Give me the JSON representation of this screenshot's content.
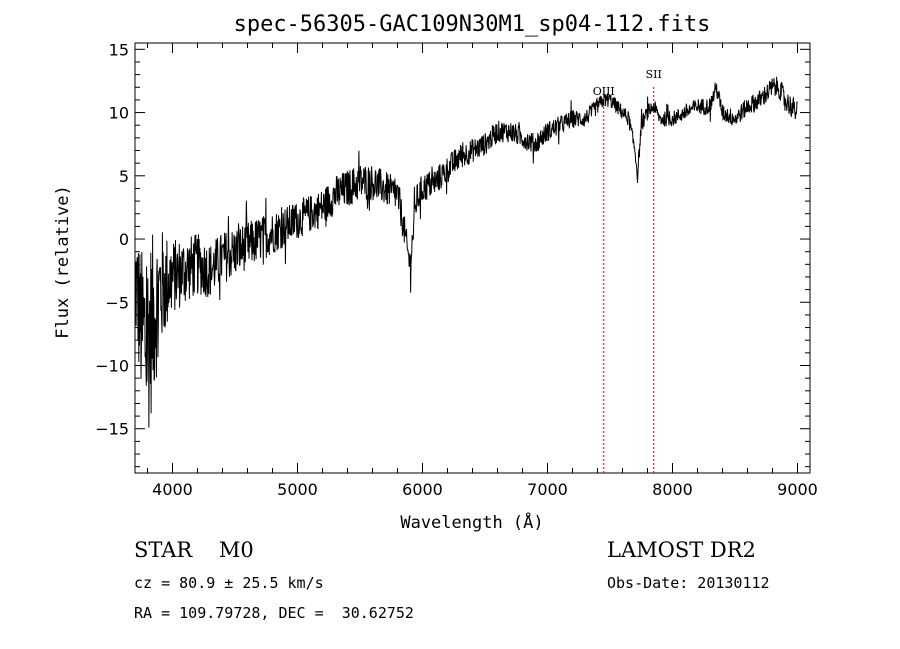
{
  "chart_data": {
    "type": "line",
    "title": "spec-56305-GAC109N30M1_sp04-112.fits",
    "xlabel": "Wavelength (Å)",
    "ylabel": "Flux (relative)",
    "xlim": [
      3700,
      9100
    ],
    "ylim": [
      -18.5,
      15.5
    ],
    "xticks": [
      4000,
      5000,
      6000,
      7000,
      8000,
      9000
    ],
    "yticks": [
      -15,
      -10,
      -5,
      0,
      5,
      10,
      15
    ],
    "xtick_labels": [
      "4000",
      "5000",
      "6000",
      "7000",
      "8000",
      "9000"
    ],
    "ytick_labels": [
      "−15",
      "−10",
      "−5",
      "0",
      "5",
      "10",
      "15"
    ],
    "line_color": "#000000",
    "marker_color": "#cc0000",
    "markers": [
      {
        "label": "OIII",
        "x": 7450
      },
      {
        "label": "SII",
        "x": 7850
      }
    ],
    "spectrum_anchors": {
      "x": [
        3700,
        3750,
        3800,
        3850,
        3900,
        4000,
        4100,
        4200,
        4300,
        4400,
        4500,
        4600,
        4700,
        4800,
        4900,
        5000,
        5100,
        5200,
        5300,
        5400,
        5500,
        5600,
        5700,
        5800,
        5850,
        5880,
        5900,
        5920,
        5950,
        6000,
        6100,
        6200,
        6300,
        6400,
        6500,
        6600,
        6700,
        6800,
        6900,
        7000,
        7100,
        7200,
        7300,
        7400,
        7450,
        7500,
        7600,
        7650,
        7700,
        7720,
        7750,
        7800,
        7850,
        7900,
        8000,
        8100,
        8200,
        8300,
        8350,
        8400,
        8500,
        8600,
        8700,
        8800,
        8850,
        8900,
        8950,
        9000
      ],
      "y": [
        -3,
        -7,
        -8,
        -6,
        -4,
        -3,
        -2.5,
        -2,
        -2.5,
        -1.5,
        -1,
        -0.5,
        0,
        0.5,
        1,
        1.5,
        2,
        2.5,
        3.5,
        4,
        4.5,
        4.5,
        4,
        3.5,
        1,
        -1,
        -2,
        0,
        3,
        4,
        4.5,
        5.5,
        6.5,
        7,
        7.5,
        8.5,
        8.5,
        8,
        7.5,
        8.5,
        9,
        9.5,
        9.5,
        10.5,
        11,
        11,
        10,
        9.5,
        7,
        5,
        9,
        10,
        10.5,
        9.5,
        9.5,
        10,
        10.5,
        10.5,
        12,
        10,
        9.5,
        10.5,
        11,
        12,
        12,
        11,
        10.5,
        10
      ]
    },
    "noise_anchors": {
      "x": [
        3700,
        3800,
        3900,
        4000,
        4300,
        4500,
        5000,
        5500,
        6000,
        6500,
        7000,
        7500,
        8000,
        8500,
        9000
      ],
      "amplitude": [
        4.5,
        8,
        5,
        3,
        2.2,
        2,
        1.5,
        1.5,
        1.2,
        0.9,
        0.8,
        0.6,
        0.6,
        0.7,
        0.9
      ]
    }
  },
  "info": {
    "line1_left": "STAR    M0",
    "line1_right": "LAMOST DR2",
    "line2_left": "cz = 80.9 ± 25.5 km/s",
    "line2_right": "Obs-Date: 20130112",
    "line3_left": "RA = 109.79728, DEC =  30.62752"
  }
}
